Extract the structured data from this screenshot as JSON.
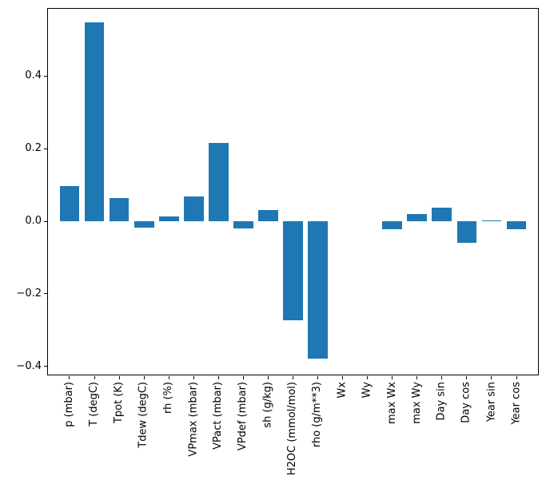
{
  "chart_data": {
    "type": "bar",
    "title": "",
    "xlabel": "",
    "ylabel": "",
    "categories": [
      "p (mbar)",
      "T (degC)",
      "Tpot (K)",
      "Tdew (degC)",
      "rh (%)",
      "VPmax (mbar)",
      "VPact (mbar)",
      "VPdef (mbar)",
      "sh (g/kg)",
      "H2OC (mmol/mol)",
      "rho (g/m**3)",
      "Wx",
      "Wy",
      "max Wx",
      "max Wy",
      "Day sin",
      "Day cos",
      "Year sin",
      "Year cos"
    ],
    "values": [
      0.098,
      0.548,
      0.063,
      -0.018,
      0.013,
      0.068,
      0.215,
      -0.019,
      0.031,
      -0.274,
      -0.378,
      0.0,
      0.0,
      -0.022,
      0.019,
      0.037,
      -0.06,
      0.002,
      -0.021
    ],
    "ylim": [
      -0.425,
      0.588
    ],
    "yticks": [
      {
        "value": 0.4,
        "label": "0.4"
      },
      {
        "value": 0.2,
        "label": "0.2"
      },
      {
        "value": 0.0,
        "label": "0.0"
      },
      {
        "value": -0.2,
        "label": "−0.2"
      },
      {
        "value": -0.4,
        "label": "−0.4"
      }
    ],
    "bar_color": "#1f77b4",
    "axis_color": "#000000",
    "grid": false,
    "legend": false,
    "x_tick_rotation_deg": 90,
    "bar_width_fraction": 0.8
  }
}
